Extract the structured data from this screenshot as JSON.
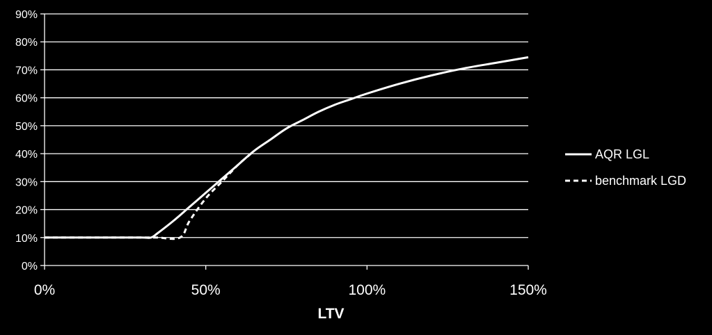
{
  "chart_data": {
    "type": "line",
    "title": "",
    "xlabel": "LTV",
    "ylabel": "",
    "xlim": [
      0,
      1.5
    ],
    "ylim": [
      0,
      0.9
    ],
    "x_ticks": [
      0,
      0.5,
      1.0,
      1.5
    ],
    "x_tick_labels": [
      "0%",
      "50%",
      "100%",
      "150%"
    ],
    "y_ticks": [
      0,
      0.1,
      0.2,
      0.3,
      0.4,
      0.5,
      0.6,
      0.7,
      0.8,
      0.9
    ],
    "y_tick_labels": [
      "0%",
      "10%",
      "20%",
      "30%",
      "40%",
      "50%",
      "60%",
      "70%",
      "80%",
      "90%"
    ],
    "grid": true,
    "legend_position": "right",
    "background_color": "#000000",
    "line_color": "#ffffff",
    "series": [
      {
        "name": "AQR LGL",
        "style": "solid",
        "x": [
          0,
          0.1,
          0.2,
          0.3,
          0.33,
          0.35,
          0.4,
          0.45,
          0.5,
          0.55,
          0.6,
          0.65,
          0.7,
          0.75,
          0.8,
          0.85,
          0.9,
          0.95,
          1.0,
          1.1,
          1.2,
          1.3,
          1.4,
          1.5
        ],
        "y": [
          0.1,
          0.1,
          0.1,
          0.1,
          0.1,
          0.115,
          0.16,
          0.21,
          0.26,
          0.31,
          0.36,
          0.41,
          0.45,
          0.49,
          0.52,
          0.55,
          0.575,
          0.595,
          0.615,
          0.65,
          0.68,
          0.705,
          0.725,
          0.745
        ]
      },
      {
        "name": "benchmark LGD",
        "style": "dashed",
        "x": [
          0,
          0.1,
          0.2,
          0.3,
          0.35,
          0.42,
          0.45,
          0.5,
          0.55,
          0.6,
          0.63,
          0.65
        ],
        "y": [
          0.1,
          0.1,
          0.1,
          0.1,
          0.1,
          0.1,
          0.16,
          0.24,
          0.3,
          0.36,
          0.39,
          0.41
        ]
      }
    ]
  }
}
